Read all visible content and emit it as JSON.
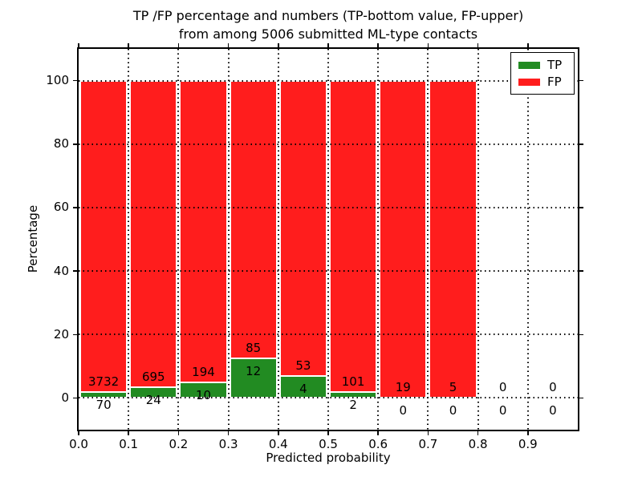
{
  "figure": {
    "title_line1": "TP /FP percentage and numbers (TP-bottom value, FP-upper)",
    "title_line2": "from among 5006 submitted ML-type contacts",
    "xlabel": "Predicted probability",
    "ylabel": "Percentage"
  },
  "chart_data": {
    "type": "bar",
    "stacked": true,
    "title": "TP /FP percentage and numbers (TP-bottom value, FP-upper) from among 5006 submitted ML-type contacts",
    "xlabel": "Predicted probability",
    "ylabel": "Percentage",
    "xlim": [
      0.0,
      1.0
    ],
    "ylim": [
      -10,
      110
    ],
    "grid": "dotted black, drawn above bars",
    "xticks": [
      {
        "value": 0.0,
        "label": "0.0"
      },
      {
        "value": 0.1,
        "label": "0.1"
      },
      {
        "value": 0.2,
        "label": "0.2"
      },
      {
        "value": 0.3,
        "label": "0.3"
      },
      {
        "value": 0.4,
        "label": "0.4"
      },
      {
        "value": 0.5,
        "label": "0.5"
      },
      {
        "value": 0.6,
        "label": "0.6"
      },
      {
        "value": 0.7,
        "label": "0.7"
      },
      {
        "value": 0.8,
        "label": "0.8"
      },
      {
        "value": 0.9,
        "label": "0.9"
      }
    ],
    "yticks": [
      {
        "value": 0,
        "label": "0"
      },
      {
        "value": 20,
        "label": "20"
      },
      {
        "value": 40,
        "label": "40"
      },
      {
        "value": 60,
        "label": "60"
      },
      {
        "value": 80,
        "label": "80"
      },
      {
        "value": 100,
        "label": "100"
      }
    ],
    "legend": {
      "position": "upper right",
      "entries": [
        {
          "name": "TP",
          "color": "#228b22"
        },
        {
          "name": "FP",
          "color": "#ff1d1d"
        }
      ]
    },
    "bar_total_pct": 100,
    "bins": [
      {
        "x0": 0.0,
        "x1": 0.1,
        "tp": 70,
        "fp": 3732,
        "tp_pct": 1.84,
        "bar": true
      },
      {
        "x0": 0.1,
        "x1": 0.2,
        "tp": 24,
        "fp": 695,
        "tp_pct": 3.34,
        "bar": true
      },
      {
        "x0": 0.2,
        "x1": 0.3,
        "tp": 10,
        "fp": 194,
        "tp_pct": 4.9,
        "bar": true
      },
      {
        "x0": 0.3,
        "x1": 0.4,
        "tp": 12,
        "fp": 85,
        "tp_pct": 12.37,
        "bar": true
      },
      {
        "x0": 0.4,
        "x1": 0.5,
        "tp": 4,
        "fp": 53,
        "tp_pct": 7.02,
        "bar": true
      },
      {
        "x0": 0.5,
        "x1": 0.6,
        "tp": 2,
        "fp": 101,
        "tp_pct": 1.94,
        "bar": true
      },
      {
        "x0": 0.6,
        "x1": 0.7,
        "tp": 0,
        "fp": 19,
        "tp_pct": 0,
        "bar": true
      },
      {
        "x0": 0.7,
        "x1": 0.8,
        "tp": 0,
        "fp": 5,
        "tp_pct": 0,
        "bar": true
      },
      {
        "x0": 0.8,
        "x1": 0.9,
        "tp": 0,
        "fp": 0,
        "tp_pct": 0,
        "bar": false
      },
      {
        "x0": 0.9,
        "x1": 1.0,
        "tp": 0,
        "fp": 0,
        "tp_pct": 0,
        "bar": false
      }
    ]
  },
  "colors": {
    "tp_green": "#228b22",
    "fp_red": "#ff1d1d",
    "background": "#ffffff",
    "axes": "#000000"
  }
}
